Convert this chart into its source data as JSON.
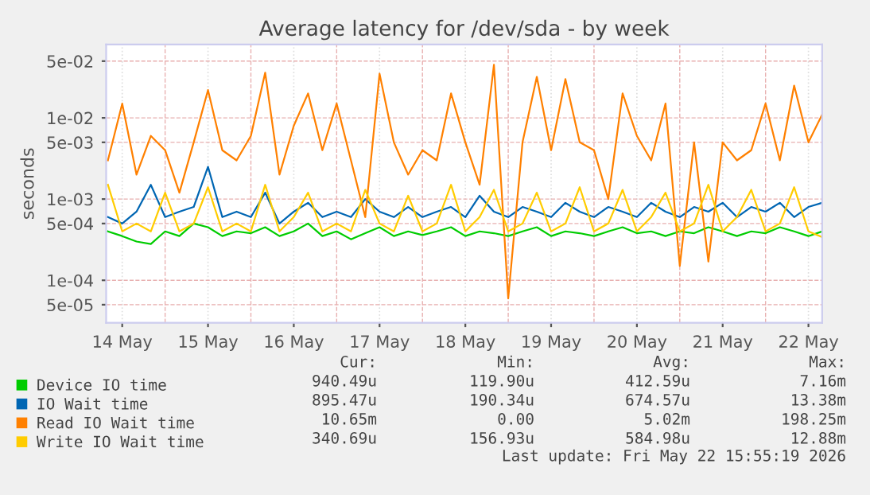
{
  "chart_data": {
    "type": "line",
    "title": "Average latency for /dev/sda - by week",
    "ylabel": "seconds",
    "x": [
      "2026-05-14T08:00",
      "2026-05-14T12:00",
      "2026-05-14T16:00",
      "2026-05-14T20:00",
      "2026-05-15T00:00",
      "2026-05-15T04:00",
      "2026-05-15T08:00",
      "2026-05-15T12:00",
      "2026-05-15T16:00",
      "2026-05-15T20:00",
      "2026-05-16T00:00",
      "2026-05-16T04:00",
      "2026-05-16T08:00",
      "2026-05-16T12:00",
      "2026-05-16T16:00",
      "2026-05-16T20:00",
      "2026-05-17T00:00",
      "2026-05-17T04:00",
      "2026-05-17T08:00",
      "2026-05-17T12:00",
      "2026-05-17T16:00",
      "2026-05-17T20:00",
      "2026-05-18T00:00",
      "2026-05-18T04:00",
      "2026-05-18T08:00",
      "2026-05-18T12:00",
      "2026-05-18T16:00",
      "2026-05-18T20:00",
      "2026-05-19T00:00",
      "2026-05-19T04:00",
      "2026-05-19T08:00",
      "2026-05-19T12:00",
      "2026-05-19T16:00",
      "2026-05-19T20:00",
      "2026-05-20T00:00",
      "2026-05-20T04:00",
      "2026-05-20T08:00",
      "2026-05-20T12:00",
      "2026-05-20T16:00",
      "2026-05-20T20:00",
      "2026-05-21T00:00",
      "2026-05-21T04:00",
      "2026-05-21T08:00",
      "2026-05-21T12:00",
      "2026-05-21T16:00",
      "2026-05-21T20:00",
      "2026-05-22T00:00",
      "2026-05-22T04:00",
      "2026-05-22T08:00",
      "2026-05-22T12:00",
      "2026-05-22T15:50"
    ],
    "series": [
      {
        "name": "Device IO time",
        "color": "#00cc00",
        "values": [
          0.0004,
          0.00035,
          0.0003,
          0.00028,
          0.0004,
          0.00035,
          0.0005,
          0.00045,
          0.00035,
          0.0004,
          0.00038,
          0.00045,
          0.00035,
          0.0004,
          0.0005,
          0.00035,
          0.0004,
          0.00032,
          0.00038,
          0.00045,
          0.00035,
          0.0004,
          0.00036,
          0.0004,
          0.00045,
          0.00035,
          0.0004,
          0.00038,
          0.00035,
          0.0004,
          0.00045,
          0.00035,
          0.0004,
          0.00038,
          0.00035,
          0.0004,
          0.00045,
          0.00038,
          0.0004,
          0.00035,
          0.0004,
          0.00038,
          0.00045,
          0.0004,
          0.00035,
          0.0004,
          0.00038,
          0.00045,
          0.0004,
          0.00035,
          0.0004
        ]
      },
      {
        "name": "IO Wait time",
        "color": "#0066b3",
        "values": [
          0.0006,
          0.0005,
          0.0007,
          0.0015,
          0.0006,
          0.0007,
          0.0008,
          0.0025,
          0.0006,
          0.0007,
          0.0006,
          0.0012,
          0.0005,
          0.0007,
          0.0009,
          0.0006,
          0.0007,
          0.0006,
          0.001,
          0.0007,
          0.0006,
          0.0008,
          0.0006,
          0.0007,
          0.0008,
          0.0006,
          0.0011,
          0.0007,
          0.0006,
          0.0008,
          0.0007,
          0.0006,
          0.0009,
          0.0007,
          0.0006,
          0.0008,
          0.0007,
          0.0006,
          0.0009,
          0.0007,
          0.0006,
          0.0008,
          0.0007,
          0.0009,
          0.0006,
          0.0008,
          0.0007,
          0.0009,
          0.0006,
          0.0008,
          0.0009
        ]
      },
      {
        "name": "Read IO Wait time",
        "color": "#ff8000",
        "values": [
          0.003,
          0.015,
          0.002,
          0.006,
          0.004,
          0.0012,
          0.005,
          0.022,
          0.004,
          0.003,
          0.006,
          0.036,
          0.002,
          0.008,
          0.02,
          0.004,
          0.015,
          0.003,
          0.0006,
          0.035,
          0.005,
          0.002,
          0.004,
          0.003,
          0.02,
          0.005,
          0.0015,
          0.045,
          6e-05,
          0.005,
          0.032,
          0.004,
          0.03,
          0.005,
          0.004,
          0.001,
          0.02,
          0.006,
          0.003,
          0.015,
          0.00015,
          0.005,
          0.00017,
          0.005,
          0.003,
          0.004,
          0.015,
          0.003,
          0.025,
          0.005,
          0.011
        ]
      },
      {
        "name": "Write IO Wait time",
        "color": "#ffcc00",
        "values": [
          0.0015,
          0.0004,
          0.0005,
          0.0004,
          0.0012,
          0.0004,
          0.0005,
          0.0014,
          0.0004,
          0.0005,
          0.0004,
          0.0015,
          0.0004,
          0.0006,
          0.0012,
          0.0004,
          0.0005,
          0.0004,
          0.0013,
          0.0005,
          0.0004,
          0.0011,
          0.0004,
          0.0005,
          0.0015,
          0.0004,
          0.0006,
          0.0013,
          0.0004,
          0.0005,
          0.0012,
          0.0004,
          0.0005,
          0.0014,
          0.0004,
          0.0005,
          0.0013,
          0.0004,
          0.0006,
          0.0012,
          0.0004,
          0.0005,
          0.0015,
          0.0004,
          0.0006,
          0.0013,
          0.0004,
          0.0005,
          0.0014,
          0.0004,
          0.00034
        ]
      }
    ],
    "log": "y",
    "ylim": [
      3e-05,
      0.08
    ],
    "yticks": [
      {
        "value": 5e-05,
        "label": "5e-05"
      },
      {
        "value": 0.0001,
        "label": "1e-04"
      },
      {
        "value": 0.0005,
        "label": "5e-04"
      },
      {
        "value": 0.001,
        "label": "1e-03"
      },
      {
        "value": 0.005,
        "label": "5e-03"
      },
      {
        "value": 0.01,
        "label": "1e-02"
      },
      {
        "value": 0.05,
        "label": "5e-02"
      }
    ],
    "xlim": [
      "2026-05-14T07:30",
      "2026-05-22T15:50"
    ],
    "xticks": [
      {
        "value": "2026-05-14T12:00",
        "label": "14 May"
      },
      {
        "value": "2026-05-15T12:00",
        "label": "15 May"
      },
      {
        "value": "2026-05-16T12:00",
        "label": "16 May"
      },
      {
        "value": "2026-05-17T12:00",
        "label": "17 May"
      },
      {
        "value": "2026-05-18T12:00",
        "label": "18 May"
      },
      {
        "value": "2026-05-19T12:00",
        "label": "19 May"
      },
      {
        "value": "2026-05-20T12:00",
        "label": "20 May"
      },
      {
        "value": "2026-05-21T12:00",
        "label": "21 May"
      },
      {
        "value": "2026-05-22T12:00",
        "label": "22 May"
      }
    ],
    "grid": true,
    "legend": "bottom",
    "marker": "none",
    "line_style": "solid",
    "annotations": [
      "Cur:",
      "Min:",
      "Avg:",
      "Max:",
      "940.49u",
      "119.90u",
      "412.59u",
      "7.16m",
      "895.47u",
      "190.34u",
      "674.57u",
      "13.38m",
      "10.65m",
      "0.00",
      "5.02m",
      "198.25m",
      "340.69u",
      "156.93u",
      "584.98u",
      "12.88m",
      "Last update: Fri May 22 15:55:19 2026"
    ]
  }
}
